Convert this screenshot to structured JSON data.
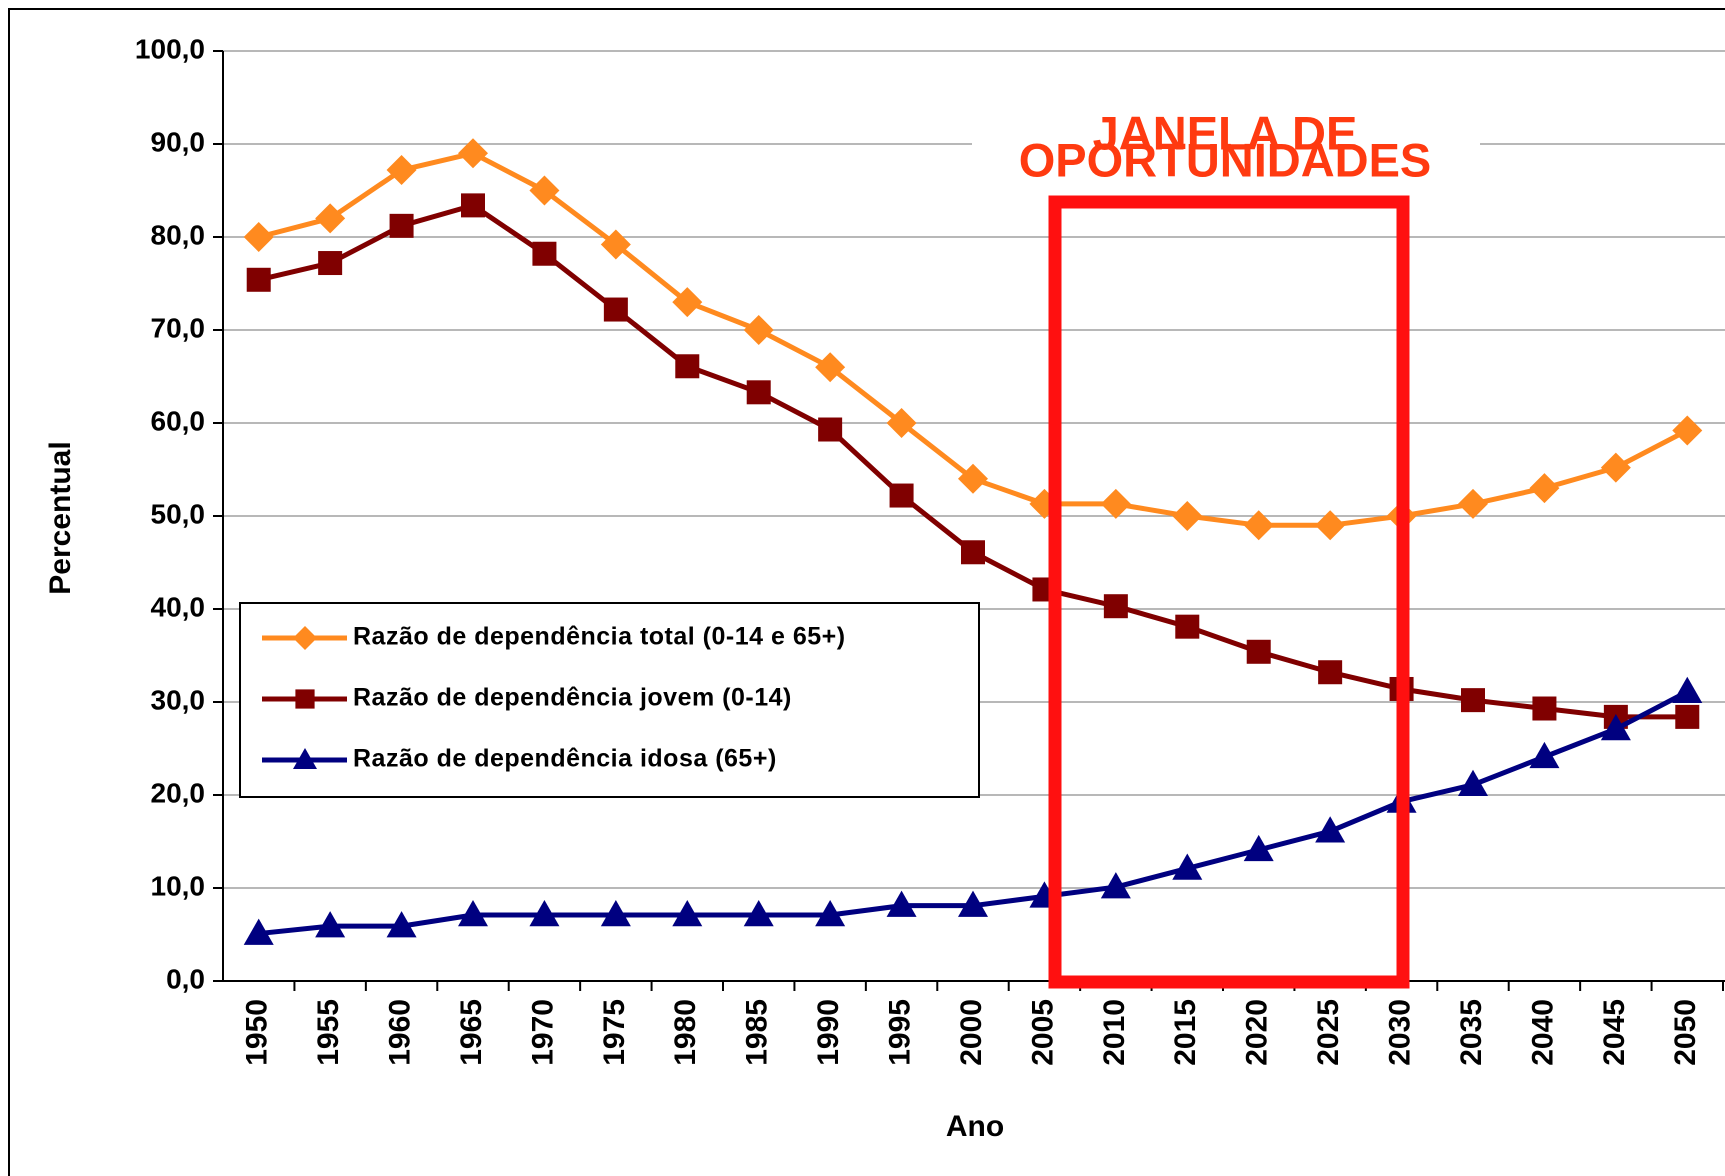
{
  "chart_data": {
    "type": "line",
    "y_label": "Percentual",
    "x_label": "Ano",
    "annotation": [
      "JANELA DE",
      "OPORTUNIDADES"
    ],
    "categories": [
      "1950",
      "1955",
      "1960",
      "1965",
      "1970",
      "1975",
      "1980",
      "1985",
      "1990",
      "1995",
      "2000",
      "2005",
      "2010",
      "2015",
      "2020",
      "2025",
      "2030",
      "2035",
      "2040",
      "2045",
      "2050"
    ],
    "series": [
      {
        "name": "Razão de dependência total (0-14 e 65+)",
        "color": "#ff8a1f",
        "marker": "diamond",
        "values": [
          80.0,
          82.0,
          87.2,
          89.0,
          85.0,
          79.2,
          73.0,
          70.0,
          66.0,
          60.0,
          54.0,
          51.3,
          51.3,
          50.0,
          49.0,
          49.0,
          50.0,
          51.3,
          53.0,
          55.2,
          59.2
        ]
      },
      {
        "name": "Razão de dependência jovem (0-14)",
        "color": "#800000",
        "marker": "square",
        "values": [
          75.4,
          77.2,
          81.2,
          83.4,
          78.2,
          72.2,
          66.1,
          63.3,
          59.3,
          52.2,
          46.1,
          42.1,
          40.3,
          38.1,
          35.4,
          33.2,
          31.4,
          30.2,
          29.3,
          28.4,
          28.4
        ]
      },
      {
        "name": "Razão de dependência idosa (65+)",
        "color": "#000080",
        "marker": "triangle",
        "values": [
          5.1,
          5.9,
          5.9,
          7.1,
          7.1,
          7.1,
          7.1,
          7.1,
          7.1,
          8.1,
          8.1,
          9.1,
          10.1,
          12.1,
          14.1,
          16.1,
          19.3,
          21.1,
          24.1,
          27.1,
          31.1
        ]
      }
    ],
    "ylim": [
      0,
      100
    ],
    "yticks": [
      {
        "value": 0,
        "label": "0,0"
      },
      {
        "value": 10,
        "label": "10,0"
      },
      {
        "value": 20,
        "label": "20,0"
      },
      {
        "value": 30,
        "label": "30,0"
      },
      {
        "value": 40,
        "label": "40,0"
      },
      {
        "value": 50,
        "label": "50,0"
      },
      {
        "value": 60,
        "label": "60,0"
      },
      {
        "value": 70,
        "label": "70,0"
      },
      {
        "value": 80,
        "label": "80,0"
      },
      {
        "value": 90,
        "label": "90,0"
      },
      {
        "value": 100,
        "label": "100,0"
      }
    ],
    "grid": true
  }
}
